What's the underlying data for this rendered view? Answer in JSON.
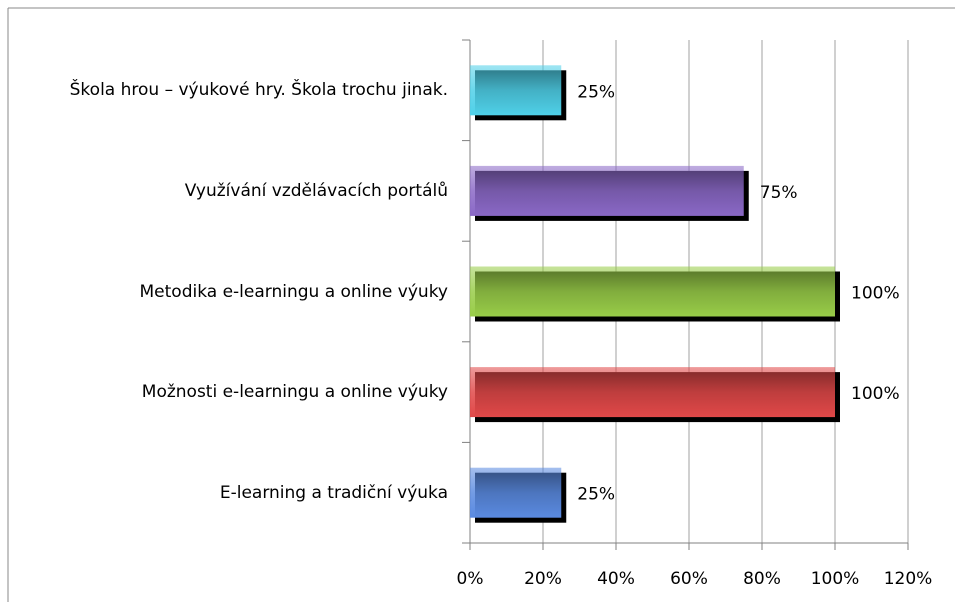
{
  "chart_data": {
    "type": "hbar",
    "categories": [
      "Škola hrou – výukové hry. Škola trochu jinak.",
      "Využívání vzdělávacích portálů",
      "Metodika e-learningu a online výuky",
      "Možnosti e-learningu a online výuky",
      "E-learning a tradiční výuka"
    ],
    "values": [
      25,
      75,
      100,
      100,
      25
    ],
    "value_labels": [
      "25%",
      "75%",
      "100%",
      "100%",
      "25%"
    ],
    "colors": [
      "#4fd0e8",
      "#8a68c6",
      "#98cc48",
      "#e04848",
      "#5a8ae0"
    ],
    "xlim": [
      0,
      120
    ],
    "xticks": [
      {
        "value": 0,
        "label": "0%"
      },
      {
        "value": 20,
        "label": "20%"
      },
      {
        "value": 40,
        "label": "40%"
      },
      {
        "value": 60,
        "label": "60%"
      },
      {
        "value": 80,
        "label": "80%"
      },
      {
        "value": 100,
        "label": "100%"
      },
      {
        "value": 120,
        "label": "120%"
      }
    ],
    "grid": true
  }
}
